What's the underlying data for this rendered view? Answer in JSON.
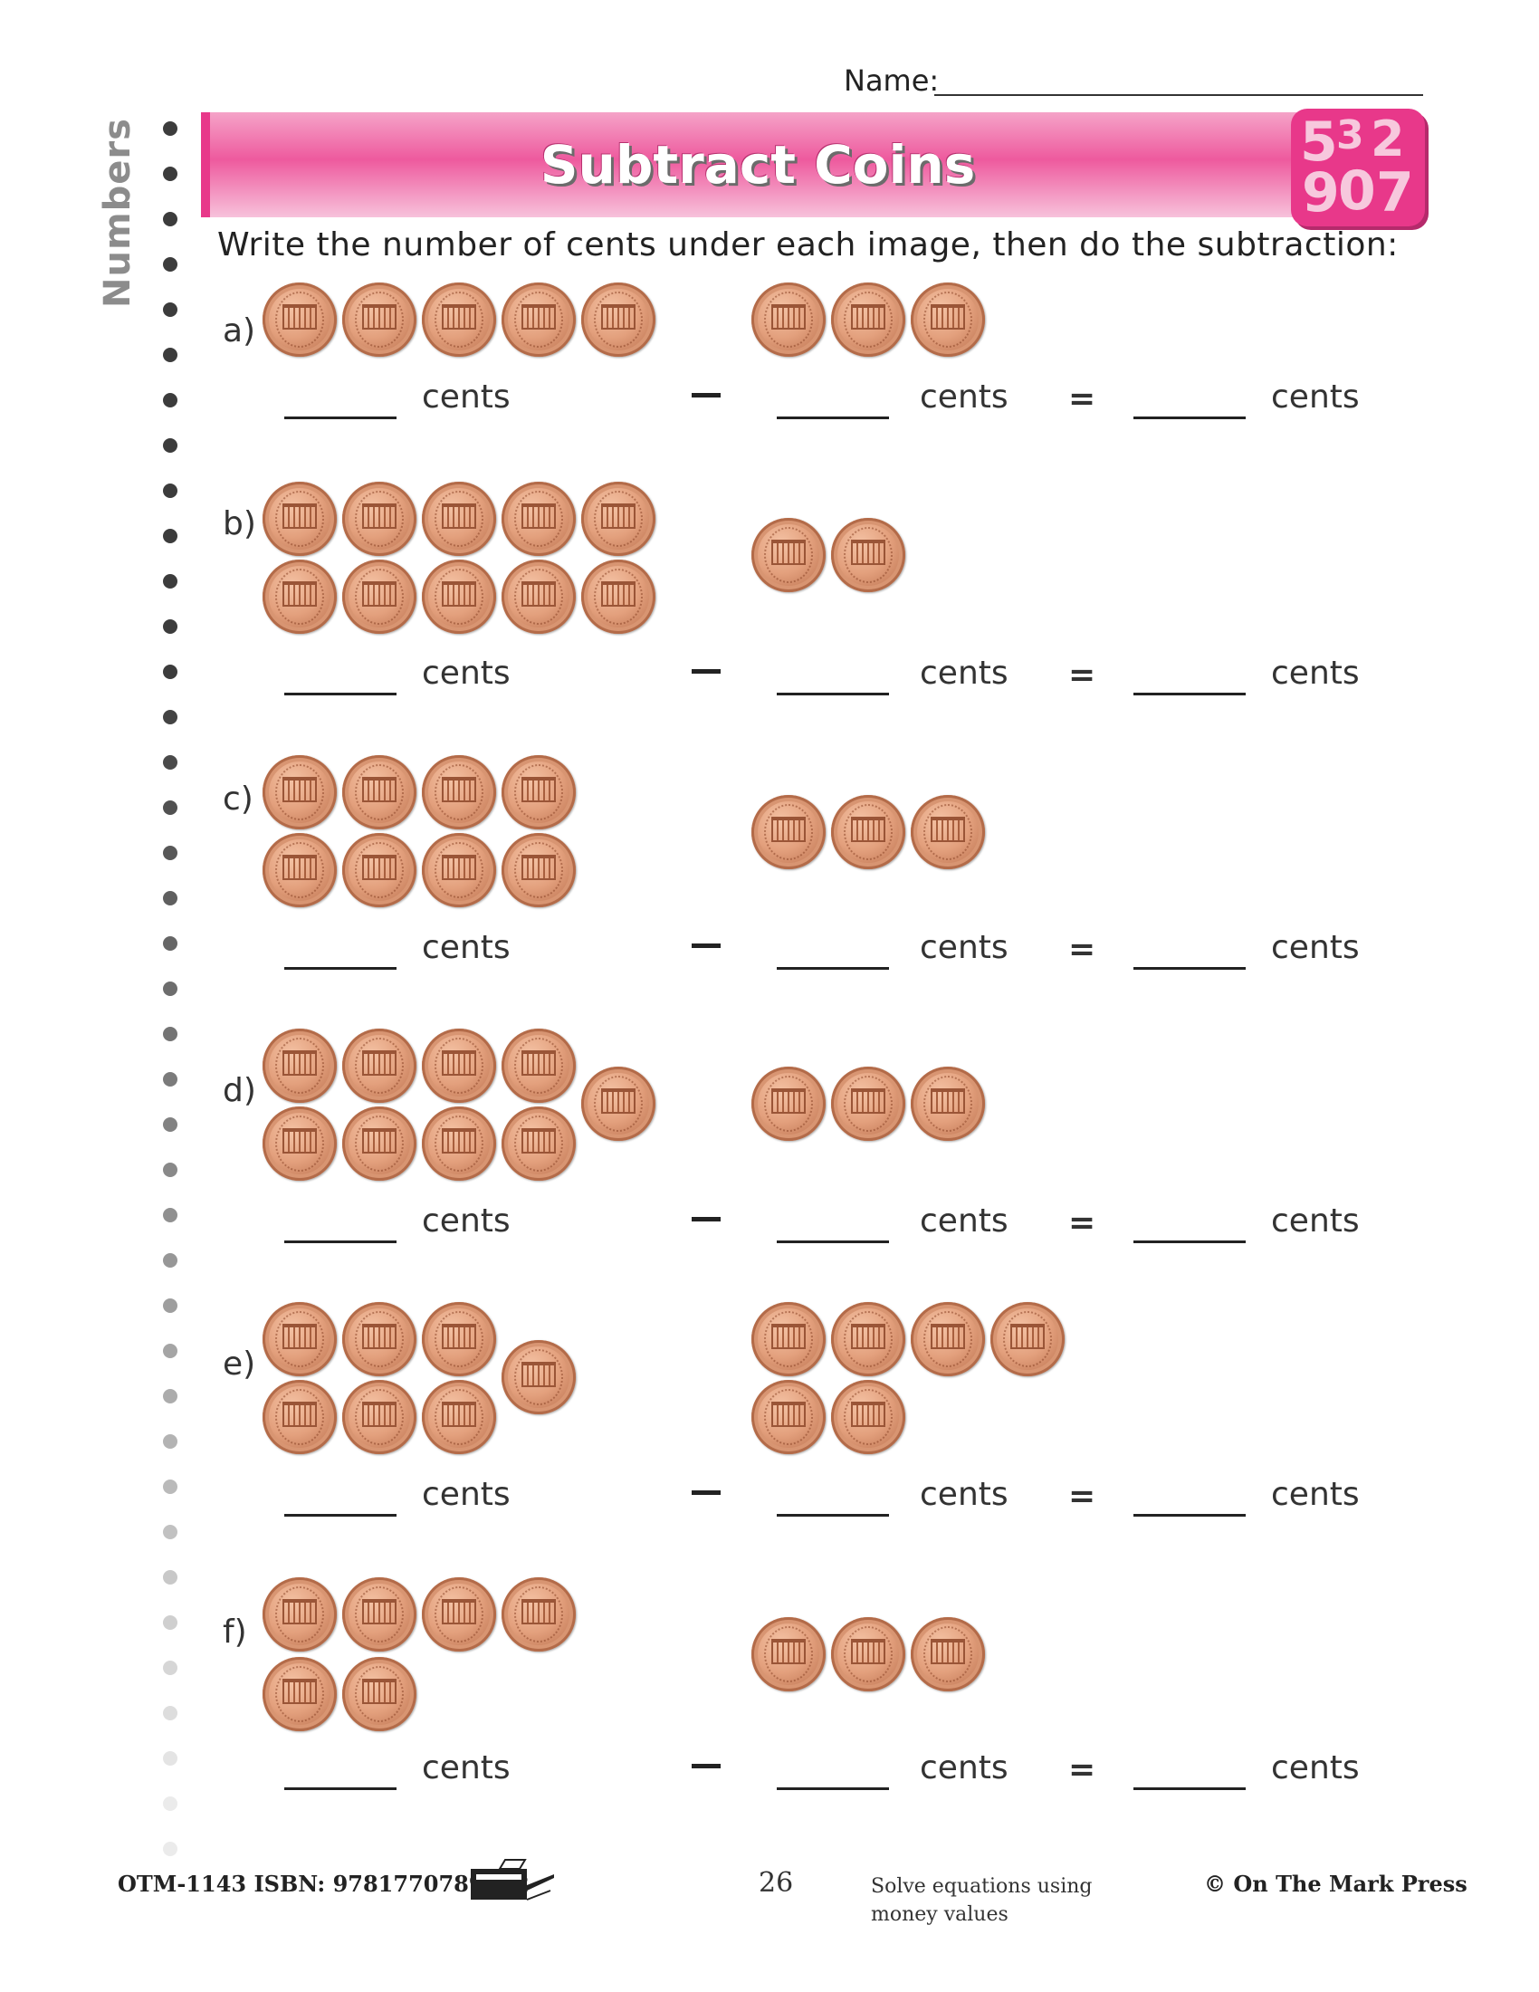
{
  "header": {
    "name_label": "Name:",
    "side_label": "Numbers",
    "title": "Subtract Coins",
    "badge_numbers": [
      "5",
      "3",
      "2",
      "9",
      "0",
      "7"
    ]
  },
  "instructions": "Write the number of cents under each image, then do the subtraction:",
  "coin_icon": "penny-icon",
  "problems": [
    {
      "letter": "a)",
      "left_coins": 5,
      "right_coins": 3,
      "unit_1": "cents",
      "unit_2": "cents",
      "unit_3": "cents",
      "minus": "–",
      "equals": "="
    },
    {
      "letter": "b)",
      "left_coins": 10,
      "right_coins": 2,
      "unit_1": "cents",
      "unit_2": "cents",
      "unit_3": "cents",
      "minus": "–",
      "equals": "="
    },
    {
      "letter": "c)",
      "left_coins": 8,
      "right_coins": 3,
      "unit_1": "cents",
      "unit_2": "cents",
      "unit_3": "cents",
      "minus": "–",
      "equals": "="
    },
    {
      "letter": "d)",
      "left_coins": 9,
      "right_coins": 3,
      "unit_1": "cents",
      "unit_2": "cents",
      "unit_3": "cents",
      "minus": "–",
      "equals": "="
    },
    {
      "letter": "e)",
      "left_coins": 7,
      "right_coins": 6,
      "unit_1": "cents",
      "unit_2": "cents",
      "unit_3": "cents",
      "minus": "–",
      "equals": "="
    },
    {
      "letter": "f)",
      "left_coins": 6,
      "right_coins": 3,
      "unit_1": "cents",
      "unit_2": "cents",
      "unit_3": "cents",
      "minus": "–",
      "equals": "="
    }
  ],
  "footer": {
    "code": "OTM-1143  ISBN: 9781770789302",
    "page_number": "26",
    "note": "Solve equations using money values",
    "copyright": "© On The Mark Press"
  },
  "colors": {
    "banner_pink": "#ee5a9e",
    "badge_pink": "#e8388a",
    "coin_copper": "#e3a07d"
  }
}
